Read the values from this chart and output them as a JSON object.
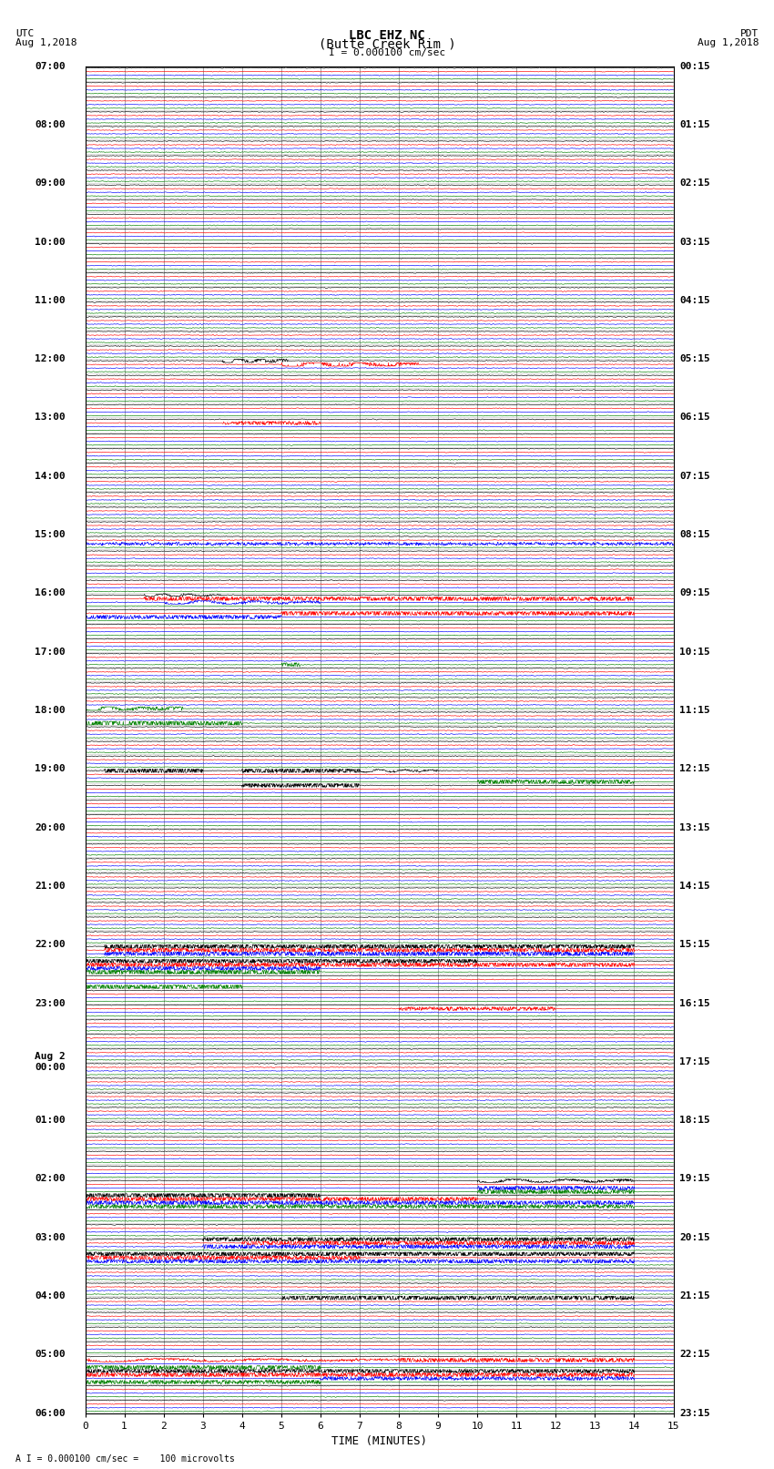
{
  "title_line1": "LBC EHZ NC",
  "title_line2": "(Butte Creek Rim )",
  "scale_label": "I = 0.000100 cm/sec",
  "footer_label": "A I = 0.000100 cm/sec =    100 microvolts",
  "utc_label": "UTC",
  "utc_date": "Aug 1,2018",
  "pdt_label": "PDT",
  "pdt_date": "Aug 1,2018",
  "xlabel": "TIME (MINUTES)",
  "bg_color": "#ffffff",
  "trace_colors": [
    "black",
    "red",
    "blue",
    "green"
  ],
  "left_times_utc": [
    "07:00",
    "",
    "",
    "",
    "08:00",
    "",
    "",
    "",
    "09:00",
    "",
    "",
    "",
    "10:00",
    "",
    "",
    "",
    "11:00",
    "",
    "",
    "",
    "12:00",
    "",
    "",
    "",
    "13:00",
    "",
    "",
    "",
    "14:00",
    "",
    "",
    "",
    "15:00",
    "",
    "",
    "",
    "16:00",
    "",
    "",
    "",
    "17:00",
    "",
    "",
    "",
    "18:00",
    "",
    "",
    "",
    "19:00",
    "",
    "",
    "",
    "20:00",
    "",
    "",
    "",
    "21:00",
    "",
    "",
    "",
    "22:00",
    "",
    "",
    "",
    "23:00",
    "",
    "",
    "",
    "Aug 2\n00:00",
    "",
    "",
    "",
    "01:00",
    "",
    "",
    "",
    "02:00",
    "",
    "",
    "",
    "03:00",
    "",
    "",
    "",
    "04:00",
    "",
    "",
    "",
    "05:00",
    "",
    "",
    "",
    "06:00",
    "",
    "",
    ""
  ],
  "right_times_pdt": [
    "00:15",
    "",
    "",
    "",
    "01:15",
    "",
    "",
    "",
    "02:15",
    "",
    "",
    "",
    "03:15",
    "",
    "",
    "",
    "04:15",
    "",
    "",
    "",
    "05:15",
    "",
    "",
    "",
    "06:15",
    "",
    "",
    "",
    "07:15",
    "",
    "",
    "",
    "08:15",
    "",
    "",
    "",
    "09:15",
    "",
    "",
    "",
    "10:15",
    "",
    "",
    "",
    "11:15",
    "",
    "",
    "",
    "12:15",
    "",
    "",
    "",
    "13:15",
    "",
    "",
    "",
    "14:15",
    "",
    "",
    "",
    "15:15",
    "",
    "",
    "",
    "16:15",
    "",
    "",
    "",
    "17:15",
    "",
    "",
    "",
    "18:15",
    "",
    "",
    "",
    "19:15",
    "",
    "",
    "",
    "20:15",
    "",
    "",
    "",
    "21:15",
    "",
    "",
    "",
    "22:15",
    "",
    "",
    "",
    "23:15",
    "",
    "",
    ""
  ],
  "n_rows": 92,
  "n_traces_per_row": 4,
  "x_min": 0,
  "x_max": 15,
  "x_ticks": [
    0,
    1,
    2,
    3,
    4,
    5,
    6,
    7,
    8,
    9,
    10,
    11,
    12,
    13,
    14,
    15
  ],
  "grid_color": "#999999",
  "title_fontsize": 10,
  "label_fontsize": 8,
  "tick_fontsize": 8,
  "time_label_fontsize": 8
}
